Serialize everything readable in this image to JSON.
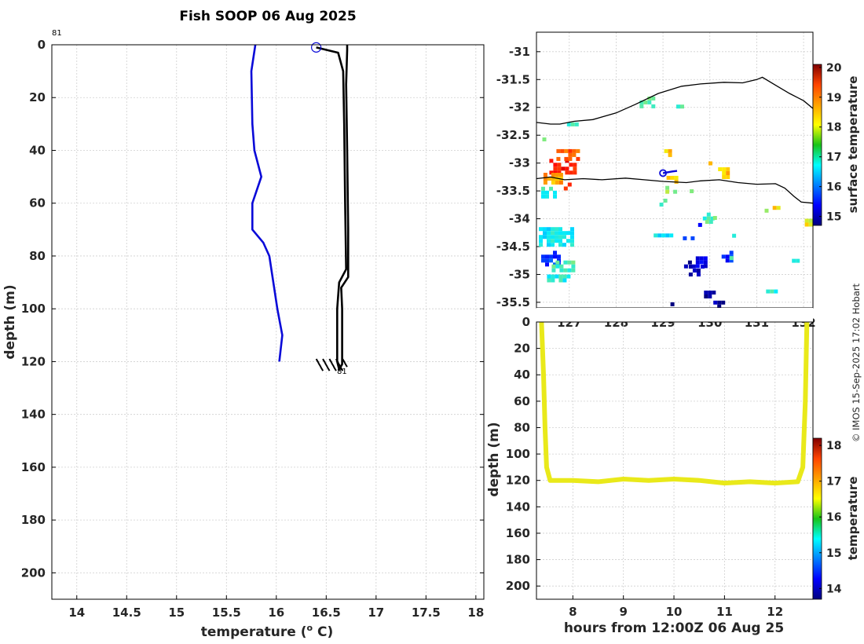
{
  "chart_data": [
    {
      "type": "line",
      "title": "Fish SOOP 06 Aug 2025",
      "xlabel": "temperature (",
      "xlabel_sup": "o",
      "xlabel_unit": " C)",
      "ylabel": "depth (m)",
      "xlim": [
        13.75,
        18.08
      ],
      "ylim": [
        210,
        0
      ],
      "xticks": [
        "14",
        "14.5",
        "15",
        "15.5",
        "16",
        "16.5",
        "17",
        "17.5",
        "18"
      ],
      "yticks": [
        "0",
        "20",
        "40",
        "60",
        "80",
        "100",
        "120",
        "140",
        "160",
        "180",
        "200"
      ],
      "grid": true,
      "annotations": [
        "81",
        "81"
      ],
      "series": [
        {
          "color": "#0a0ad8",
          "points": [
            [
              15.79,
              0
            ],
            [
              15.75,
              10
            ],
            [
              15.76,
              30
            ],
            [
              15.78,
              40
            ],
            [
              15.85,
              50
            ],
            [
              15.76,
              60
            ],
            [
              15.76,
              70
            ],
            [
              15.87,
              75
            ],
            [
              15.93,
              80
            ],
            [
              15.97,
              90
            ],
            [
              16.01,
              100
            ],
            [
              16.06,
              110
            ],
            [
              16.03,
              120
            ]
          ]
        },
        {
          "color": "#000000",
          "points": [
            [
              16.4,
              1
            ],
            [
              16.62,
              3
            ],
            [
              16.67,
              10
            ],
            [
              16.68,
              30
            ],
            [
              16.69,
              60
            ],
            [
              16.7,
              85
            ],
            [
              16.63,
              90
            ],
            [
              16.61,
              100
            ],
            [
              16.61,
              120
            ],
            [
              16.63,
              123
            ],
            [
              16.66,
              121
            ],
            [
              16.66,
              100
            ],
            [
              16.65,
              92
            ],
            [
              16.72,
              88
            ],
            [
              16.72,
              70
            ],
            [
              16.71,
              40
            ],
            [
              16.7,
              15
            ],
            [
              16.71,
              2
            ],
            [
              16.71,
              0
            ]
          ]
        }
      ],
      "marker": {
        "type": "circle",
        "x": 16.4,
        "y": 1,
        "color": "#0a0ad8"
      }
    },
    {
      "type": "heatmap",
      "xticks": [
        "127",
        "128",
        "129",
        "130",
        "131",
        "132"
      ],
      "yticks": [
        "-31",
        "-31.5",
        "-32",
        "-32.5",
        "-33",
        "-33.5",
        "-34",
        "-34.5",
        "-35",
        "-35.5"
      ],
      "xlim": [
        126.3,
        132.2
      ],
      "ylim": [
        -35.6,
        -30.65
      ],
      "grid": true,
      "colorbar": {
        "label": "surface temperature",
        "range": [
          14.7,
          20.1
        ],
        "ticks": [
          "15",
          "16",
          "17",
          "18",
          "19",
          "20"
        ]
      },
      "coastlines": [
        [
          [
            126.3,
            -32.27
          ],
          [
            126.6,
            -32.3
          ],
          [
            126.8,
            -32.3
          ],
          [
            127.1,
            -32.25
          ],
          [
            127.5,
            -32.22
          ],
          [
            128.0,
            -32.1
          ],
          [
            128.4,
            -31.95
          ],
          [
            128.9,
            -31.75
          ],
          [
            129.4,
            -31.62
          ],
          [
            129.8,
            -31.58
          ],
          [
            130.3,
            -31.55
          ],
          [
            130.7,
            -31.56
          ],
          [
            131.0,
            -31.5
          ],
          [
            131.12,
            -31.46
          ],
          [
            131.4,
            -31.6
          ],
          [
            131.7,
            -31.75
          ],
          [
            132.0,
            -31.88
          ],
          [
            132.2,
            -32.02
          ]
        ],
        [
          [
            126.3,
            -33.28
          ],
          [
            126.6,
            -33.25
          ],
          [
            126.9,
            -33.3
          ],
          [
            127.3,
            -33.28
          ],
          [
            127.7,
            -33.3
          ],
          [
            128.2,
            -33.27
          ],
          [
            128.6,
            -33.3
          ],
          [
            129.0,
            -33.33
          ],
          [
            129.5,
            -33.35
          ],
          [
            129.8,
            -33.32
          ],
          [
            130.2,
            -33.3
          ],
          [
            130.6,
            -33.35
          ],
          [
            131.0,
            -33.38
          ],
          [
            131.4,
            -33.37
          ],
          [
            131.6,
            -33.45
          ],
          [
            131.8,
            -33.6
          ],
          [
            131.95,
            -33.7
          ],
          [
            132.2,
            -33.72
          ]
        ]
      ],
      "track": {
        "color": "#0a0ad8",
        "points": [
          [
            129.0,
            -33.18
          ],
          [
            129.2,
            -33.15
          ],
          [
            129.3,
            -33.14
          ]
        ]
      },
      "patches": [
        {
          "lon": 126.85,
          "lat": -33.05,
          "w": 0.55,
          "h": 0.25,
          "temp": 19.3
        },
        {
          "lon": 126.95,
          "lat": -32.85,
          "w": 0.45,
          "h": 0.2,
          "temp": 18.9
        },
        {
          "lon": 126.65,
          "lat": -33.25,
          "w": 0.4,
          "h": 0.15,
          "temp": 18.5
        },
        {
          "lon": 126.9,
          "lat": -33.4,
          "w": 0.2,
          "h": 0.1,
          "temp": 19.0
        },
        {
          "lon": 126.5,
          "lat": -32.6,
          "w": 0.15,
          "h": 0.12,
          "temp": 17.6
        },
        {
          "lon": 126.55,
          "lat": -33.5,
          "w": 0.3,
          "h": 0.15,
          "temp": 17.0
        },
        {
          "lon": 126.7,
          "lat": -34.3,
          "w": 0.7,
          "h": 0.3,
          "temp": 16.8
        },
        {
          "lon": 126.6,
          "lat": -34.7,
          "w": 0.4,
          "h": 0.25,
          "temp": 15.7
        },
        {
          "lon": 126.85,
          "lat": -34.85,
          "w": 0.45,
          "h": 0.2,
          "temp": 17.1
        },
        {
          "lon": 126.8,
          "lat": -35.05,
          "w": 0.55,
          "h": 0.1,
          "temp": 16.9
        },
        {
          "lon": 127.05,
          "lat": -32.3,
          "w": 0.2,
          "h": 0.06,
          "temp": 17.0
        },
        {
          "lon": 128.65,
          "lat": -31.88,
          "w": 0.3,
          "h": 0.15,
          "temp": 17.3
        },
        {
          "lon": 129.3,
          "lat": -31.98,
          "w": 0.2,
          "h": 0.06,
          "temp": 17.0
        },
        {
          "lon": 129.1,
          "lat": -32.8,
          "w": 0.15,
          "h": 0.1,
          "temp": 18.2
        },
        {
          "lon": 129.2,
          "lat": -33.28,
          "w": 0.25,
          "h": 0.1,
          "temp": 18.1
        },
        {
          "lon": 129.15,
          "lat": -33.45,
          "w": 0.2,
          "h": 0.08,
          "temp": 17.6
        },
        {
          "lon": 129.0,
          "lat": -33.68,
          "w": 0.15,
          "h": 0.08,
          "temp": 17.0
        },
        {
          "lon": 130.3,
          "lat": -33.15,
          "w": 0.25,
          "h": 0.15,
          "temp": 18.3
        },
        {
          "lon": 130.0,
          "lat": -33.0,
          "w": 0.06,
          "h": 0.06,
          "temp": 18.4
        },
        {
          "lon": 129.95,
          "lat": -33.95,
          "w": 0.2,
          "h": 0.12,
          "temp": 17.0
        },
        {
          "lon": 130.0,
          "lat": -34.0,
          "w": 0.2,
          "h": 0.1,
          "temp": 17.3
        },
        {
          "lon": 129.8,
          "lat": -34.1,
          "w": 0.1,
          "h": 0.05,
          "temp": 15.5
        },
        {
          "lon": 129.0,
          "lat": -34.3,
          "w": 0.4,
          "h": 0.07,
          "temp": 16.8
        },
        {
          "lon": 129.55,
          "lat": -34.35,
          "w": 0.25,
          "h": 0.07,
          "temp": 15.6
        },
        {
          "lon": 129.8,
          "lat": -34.75,
          "w": 0.2,
          "h": 0.15,
          "temp": 15.3
        },
        {
          "lon": 129.7,
          "lat": -34.9,
          "w": 0.3,
          "h": 0.15,
          "temp": 15.0
        },
        {
          "lon": 129.55,
          "lat": -34.8,
          "w": 0.2,
          "h": 0.1,
          "temp": 14.8
        },
        {
          "lon": 129.3,
          "lat": -34.75,
          "w": 0.12,
          "h": 0.06,
          "temp": 15.2
        },
        {
          "lon": 130.35,
          "lat": -34.65,
          "w": 0.2,
          "h": 0.15,
          "temp": 15.6
        },
        {
          "lon": 130.6,
          "lat": -34.3,
          "w": 0.25,
          "h": 0.06,
          "temp": 16.8
        },
        {
          "lon": 130.45,
          "lat": -34.7,
          "w": 0.06,
          "h": 0.06,
          "temp": 17.2
        },
        {
          "lon": 131.35,
          "lat": -35.3,
          "w": 0.3,
          "h": 0.06,
          "temp": 16.9
        },
        {
          "lon": 131.8,
          "lat": -34.75,
          "w": 0.1,
          "h": 0.06,
          "temp": 17.0
        },
        {
          "lon": 132.1,
          "lat": -34.05,
          "w": 0.15,
          "h": 0.1,
          "temp": 18.0
        },
        {
          "lon": 131.4,
          "lat": -33.8,
          "w": 0.12,
          "h": 0.06,
          "temp": 18.1
        },
        {
          "lon": 131.2,
          "lat": -33.85,
          "w": 0.06,
          "h": 0.06,
          "temp": 17.4
        },
        {
          "lon": 130.0,
          "lat": -35.35,
          "w": 0.25,
          "h": 0.12,
          "temp": 14.8
        },
        {
          "lon": 130.2,
          "lat": -35.52,
          "w": 0.25,
          "h": 0.1,
          "temp": 14.8
        },
        {
          "lon": 130.45,
          "lat": -35.58,
          "w": 0.3,
          "h": 0.05,
          "temp": 15.5
        },
        {
          "lon": 129.2,
          "lat": -35.53,
          "w": 0.08,
          "h": 0.06,
          "temp": 14.8
        },
        {
          "lon": 131.6,
          "lat": -33.1,
          "w": 0.06,
          "h": 0.06,
          "temp": 19.0
        },
        {
          "lon": 129.6,
          "lat": -33.5,
          "w": 0.06,
          "h": 0.06,
          "temp": 17.6
        },
        {
          "lon": 129.7,
          "lat": -33.0,
          "w": 0.06,
          "h": 0.05,
          "temp": 18.0
        }
      ]
    },
    {
      "type": "line",
      "xlabel": "hours from 12:00Z 06 Aug 25",
      "ylabel": "depth (m)",
      "xlim": [
        7.28,
        12.75
      ],
      "ylim": [
        210,
        0
      ],
      "xticks": [
        "8",
        "9",
        "10",
        "11",
        "12"
      ],
      "yticks": [
        "0",
        "20",
        "40",
        "60",
        "80",
        "100",
        "120",
        "140",
        "160",
        "180",
        "200"
      ],
      "grid": true,
      "colorbar": {
        "label": "temperature",
        "range": [
          13.7,
          18.2
        ],
        "ticks": [
          "14",
          "15",
          "16",
          "17",
          "18"
        ]
      },
      "series": [
        {
          "color": "#e9e91a",
          "temp": 16.9,
          "points": [
            [
              7.38,
              0
            ],
            [
              7.42,
              40
            ],
            [
              7.45,
              80
            ],
            [
              7.48,
              110
            ],
            [
              7.55,
              120
            ],
            [
              8.0,
              120
            ],
            [
              8.5,
              121
            ],
            [
              9.0,
              119
            ],
            [
              9.5,
              120
            ],
            [
              10.0,
              119
            ],
            [
              10.5,
              120
            ],
            [
              11.0,
              122
            ],
            [
              11.5,
              121
            ],
            [
              12.0,
              122
            ],
            [
              12.45,
              121
            ],
            [
              12.55,
              110
            ],
            [
              12.6,
              60
            ],
            [
              12.63,
              0
            ]
          ]
        }
      ]
    }
  ],
  "credit": "© IMOS 15-Sep-2025 17:02 Hobart"
}
